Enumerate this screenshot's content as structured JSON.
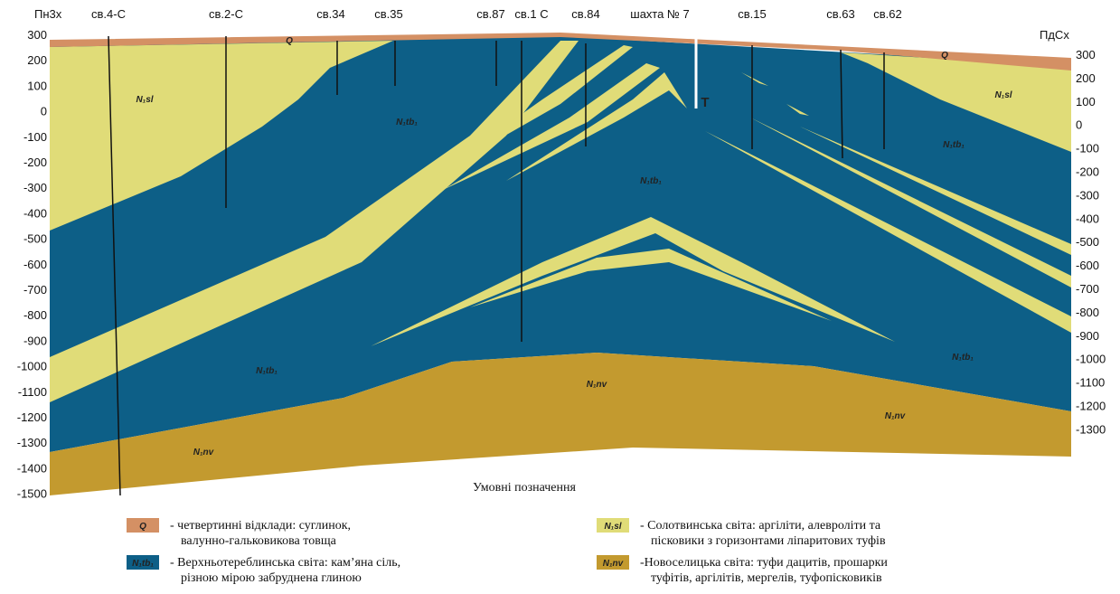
{
  "header": {
    "left_direction": "Пн3х",
    "right_direction": "ПдСх"
  },
  "wells": [
    {
      "label": "св.4-С"
    },
    {
      "label": "св.2-С"
    },
    {
      "label": "св.34"
    },
    {
      "label": "св.35"
    },
    {
      "label": "св.87"
    },
    {
      "label": "св.1 С"
    },
    {
      "label": "св.84"
    },
    {
      "label": "шахта № 7"
    },
    {
      "label": "св.15"
    },
    {
      "label": "св.63"
    },
    {
      "label": "св.62"
    }
  ],
  "left_axis": {
    "labels": [
      "300",
      "200",
      "100",
      "0",
      "-100",
      "-200",
      "-300",
      "-400",
      "-500",
      "-600",
      "-700",
      "-800",
      "-900",
      "-1000",
      "-1100",
      "-1200",
      "-1300",
      "-1400",
      "-1500"
    ]
  },
  "right_axis": {
    "labels": [
      "300",
      "200",
      "100",
      "0",
      "-100",
      "-200",
      "-300",
      "-400",
      "-500",
      "-600",
      "-700",
      "-800",
      "-900",
      "-1000",
      "-1100",
      "-1200",
      "-1300"
    ]
  },
  "layer_labels": [
    "Q",
    "Q",
    "N₁sl",
    "N₁sl",
    "N₁tb₁",
    "N₁tb₁",
    "N₁tb₁",
    "N₁tb₁",
    "N₁tb₁",
    "N₁nv",
    "N₁nv",
    "N₁nv",
    "T"
  ],
  "legend": {
    "title": "Умовні позначення",
    "items": [
      {
        "symbol": "Q",
        "lines": [
          "- четвертинні відклади: суглинок,",
          "валунно-гальковикова товща"
        ]
      },
      {
        "symbol": "N₁tb₁",
        "lines": [
          "- Верхньотереблинська світа: кам’яна сіль,",
          "різною мірою забруднена глиною"
        ]
      },
      {
        "symbol": "N₁sl",
        "lines": [
          "- Солотвинська світа: аргіліти, алевроліти та",
          "пісковики з горизонтами ліпаритових туфів"
        ]
      },
      {
        "symbol": "N₁nv",
        "lines": [
          "-Новоселицька світа: туфи дацитів, прошарки",
          "туфітів, аргілітів, мергелів, туфопісковиків"
        ]
      }
    ]
  }
}
